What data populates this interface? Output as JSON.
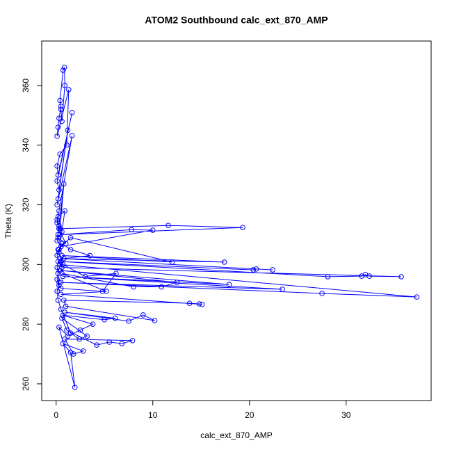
{
  "chart_data": {
    "type": "scatter",
    "title": "ATOM2 Southbound calc_ext_870_AMP",
    "x_label": "calc_ext_870_AMP",
    "y_label": "Theta (K)",
    "color": "#0000ff",
    "connect": true,
    "x": [
      0.5,
      0.6,
      0.9,
      0.86,
      0.72,
      0.4,
      0.5,
      0.3,
      0.2,
      0.1,
      1.3,
      1.1,
      0.4,
      0.1,
      0.2,
      1.65,
      0.1,
      0.3,
      1.2,
      0.2,
      0.1,
      1.65,
      0.3,
      0.1,
      0.4,
      0.8,
      0.2,
      0.1,
      0.5,
      0.3,
      0.9,
      0.2,
      0.1,
      0.3,
      0.6,
      0.2,
      1.0,
      0.3,
      11.6,
      19.3,
      0.4,
      7.8,
      10.0,
      0.5,
      1.5,
      12.0,
      0.6,
      17.4,
      0.4,
      22.4,
      20.7,
      20.4,
      0.5,
      28.1,
      31.6,
      32.0,
      32.4,
      35.7,
      0.6,
      0.4,
      37.3,
      27.5,
      0.5,
      23.4,
      0.7,
      17.9,
      0.4,
      12.5,
      10.9,
      8.0,
      0.6,
      5.2,
      0.5,
      15.1,
      14.8,
      13.8,
      0.8,
      1.0,
      10.2,
      9.0,
      7.5,
      0.9,
      6.1,
      5.0,
      0.7,
      3.8,
      2.5,
      1.2,
      0.3,
      1.94,
      1.5,
      0.7,
      2.8,
      1.8,
      0.9,
      7.9,
      6.8,
      5.5,
      4.2,
      1.1,
      0.6,
      3.2,
      2.4,
      1.5,
      0.5,
      0.2,
      0.1,
      0.3,
      0.2,
      0.4,
      0.1,
      0.3,
      0.6,
      1.5,
      3.5,
      0.8,
      0.2,
      0.1,
      0.2,
      0.1,
      0.3,
      0.5,
      4.8,
      6.2,
      3.0,
      0.7,
      0.2
    ],
    "y": [
      352,
      348,
      360,
      366.1,
      365.1,
      355,
      353,
      349,
      346,
      343,
      358.6,
      340,
      337,
      333,
      330,
      350.9,
      328,
      325,
      345,
      322,
      320,
      343.2,
      318,
      315,
      312,
      327,
      310,
      308,
      306,
      304,
      318,
      316,
      314,
      313,
      311,
      309,
      307,
      312,
      313.1,
      312.4,
      310,
      311.7,
      311.5,
      306,
      309,
      300.8,
      303,
      300.8,
      302,
      298.2,
      298.5,
      298.2,
      301,
      295.9,
      296.1,
      296.6,
      296.1,
      295.9,
      299,
      300,
      289.1,
      290.3,
      294,
      291.7,
      296,
      293.3,
      298,
      294.0,
      292.5,
      292.5,
      297,
      291.0,
      290,
      286.6,
      286.8,
      287.0,
      288,
      286,
      281.2,
      283.1,
      281.0,
      284,
      282,
      281.5,
      283,
      280,
      278,
      276,
      279,
      258.8,
      270.5,
      273.5,
      271,
      270,
      275,
      274.5,
      273.5,
      274,
      273,
      278,
      282,
      276,
      275,
      277,
      285,
      288,
      291,
      294,
      297,
      300,
      303,
      305,
      307,
      305,
      303,
      302,
      301,
      299,
      297,
      295,
      293,
      292,
      291,
      297,
      296,
      300,
      305
    ],
    "xlim": [
      -1.49,
      38.79
    ],
    "ylim": [
      254.4,
      374.9
    ],
    "xticks": [
      0,
      10,
      20,
      30
    ],
    "yticks": [
      260,
      280,
      300,
      320,
      340,
      360
    ]
  }
}
